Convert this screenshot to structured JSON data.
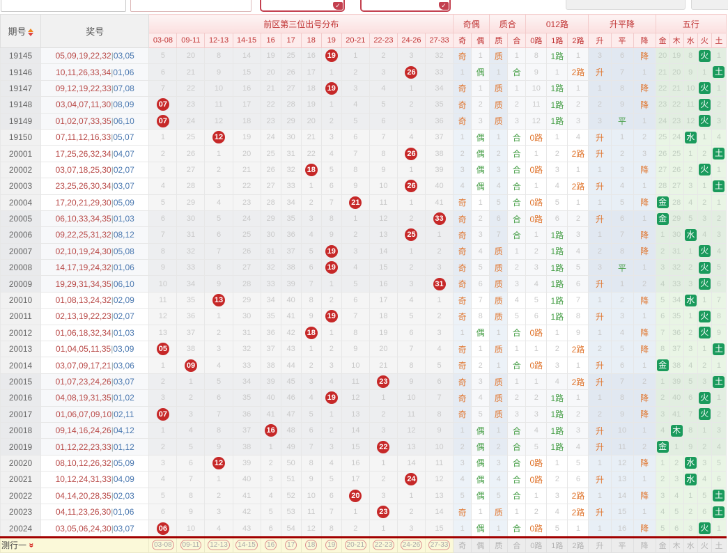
{
  "top_bar": {
    "inputs": [
      {
        "value": ""
      },
      {
        "value": ""
      }
    ],
    "red_buttons": [
      {
        "label": ""
      },
      {
        "label": ""
      }
    ],
    "gray_boxes": [
      {
        "label": ""
      },
      {
        "label": ""
      }
    ]
  },
  "header": {
    "issue_col": "期号",
    "prize_col": "奖号",
    "dist_group": "前区第三位出号分布",
    "dist_cols": [
      "03-08",
      "09-11",
      "12-13",
      "14-15",
      "16",
      "17",
      "18",
      "19",
      "20-21",
      "22-23",
      "24-26",
      "27-33"
    ],
    "groups": [
      {
        "label": "奇偶",
        "cols": [
          "奇",
          "偶"
        ]
      },
      {
        "label": "质合",
        "cols": [
          "质",
          "合"
        ]
      },
      {
        "label": "012路",
        "cols": [
          "0路",
          "1路",
          "2路"
        ]
      },
      {
        "label": "升平降",
        "cols": [
          "升",
          "平",
          "降"
        ]
      },
      {
        "label": "五行",
        "cols": [
          "金",
          "木",
          "水",
          "火",
          "土"
        ]
      }
    ]
  },
  "hit_styles": {
    "orange": [
      "奇",
      "质",
      "0路",
      "2路",
      "升",
      "降"
    ],
    "green": [
      "偶",
      "合",
      "1路",
      "平"
    ],
    "elements": [
      "金",
      "木",
      "水",
      "火",
      "土"
    ],
    "colors": {
      "ball": "#c62828",
      "badge": "#1a9a5c",
      "orange": "#e0762f",
      "green": "#4ba14b"
    }
  },
  "rows": [
    {
      "issue": "19145",
      "front": "05,09,19,22,32",
      "back": "03,05",
      "cells": [
        "5",
        "20",
        "8",
        "14",
        "19",
        "25",
        "16",
        "*19",
        "1",
        "2",
        "3",
        "32",
        "奇",
        "1",
        "质",
        "1",
        "8",
        "1路",
        "1",
        "3",
        "6",
        "降",
        "20",
        "19",
        "8",
        "火",
        "1"
      ]
    },
    {
      "issue": "19146",
      "front": "10,11,26,33,34",
      "back": "01,06",
      "cells": [
        "6",
        "21",
        "9",
        "15",
        "20",
        "26",
        "17",
        "1",
        "2",
        "3",
        "*26",
        "33",
        "1",
        "偶",
        "1",
        "合",
        "9",
        "1",
        "2路",
        "升",
        "7",
        "1",
        "21",
        "20",
        "9",
        "1",
        "土"
      ]
    },
    {
      "issue": "19147",
      "front": "09,12,19,22,33",
      "back": "07,08",
      "cells": [
        "7",
        "22",
        "10",
        "16",
        "21",
        "27",
        "18",
        "*19",
        "3",
        "4",
        "1",
        "34",
        "奇",
        "1",
        "质",
        "1",
        "10",
        "1路",
        "1",
        "1",
        "8",
        "降",
        "22",
        "21",
        "10",
        "火",
        "1"
      ]
    },
    {
      "issue": "19148",
      "front": "03,04,07,11,30",
      "back": "08,09",
      "cells": [
        "*07",
        "23",
        "11",
        "17",
        "22",
        "28",
        "19",
        "1",
        "4",
        "5",
        "2",
        "35",
        "奇",
        "2",
        "质",
        "2",
        "11",
        "1路",
        "2",
        "2",
        "9",
        "降",
        "23",
        "22",
        "11",
        "火",
        "2"
      ]
    },
    {
      "issue": "19149",
      "front": "01,02,07,33,35",
      "back": "06,10",
      "cells": [
        "*07",
        "24",
        "12",
        "18",
        "23",
        "29",
        "20",
        "2",
        "5",
        "6",
        "3",
        "36",
        "奇",
        "3",
        "质",
        "3",
        "12",
        "1路",
        "3",
        "3",
        "平",
        "1",
        "24",
        "23",
        "12",
        "火",
        "3"
      ]
    },
    {
      "issue": "19150",
      "front": "07,11,12,16,33",
      "back": "05,07",
      "cells": [
        "1",
        "25",
        "*12",
        "19",
        "24",
        "30",
        "21",
        "3",
        "6",
        "7",
        "4",
        "37",
        "1",
        "偶",
        "1",
        "合",
        "0路",
        "1",
        "4",
        "升",
        "1",
        "2",
        "25",
        "24",
        "水",
        "1",
        "4"
      ]
    },
    {
      "issue": "20001",
      "front": "17,25,26,32,34",
      "back": "04,07",
      "cells": [
        "2",
        "26",
        "1",
        "20",
        "25",
        "31",
        "22",
        "4",
        "7",
        "8",
        "*26",
        "38",
        "2",
        "偶",
        "2",
        "合",
        "1",
        "2",
        "2路",
        "升",
        "2",
        "3",
        "26",
        "25",
        "1",
        "2",
        "土"
      ]
    },
    {
      "issue": "20002",
      "front": "03,07,18,25,30",
      "back": "02,07",
      "cells": [
        "3",
        "27",
        "2",
        "21",
        "26",
        "32",
        "*18",
        "5",
        "8",
        "9",
        "1",
        "39",
        "3",
        "偶",
        "3",
        "合",
        "0路",
        "3",
        "1",
        "1",
        "3",
        "降",
        "27",
        "26",
        "2",
        "火",
        "1"
      ]
    },
    {
      "issue": "20003",
      "front": "23,25,26,30,34",
      "back": "03,07",
      "cells": [
        "4",
        "28",
        "3",
        "22",
        "27",
        "33",
        "1",
        "6",
        "9",
        "10",
        "*26",
        "40",
        "4",
        "偶",
        "4",
        "合",
        "1",
        "4",
        "2路",
        "升",
        "4",
        "1",
        "28",
        "27",
        "3",
        "1",
        "土"
      ]
    },
    {
      "issue": "20004",
      "front": "17,20,21,29,30",
      "back": "05,09",
      "cells": [
        "5",
        "29",
        "4",
        "23",
        "28",
        "34",
        "2",
        "7",
        "*21",
        "11",
        "1",
        "41",
        "奇",
        "1",
        "5",
        "合",
        "0路",
        "5",
        "1",
        "1",
        "5",
        "降",
        "金",
        "28",
        "4",
        "2",
        "1"
      ]
    },
    {
      "issue": "20005",
      "front": "06,10,33,34,35",
      "back": "01,03",
      "cells": [
        "6",
        "30",
        "5",
        "24",
        "29",
        "35",
        "3",
        "8",
        "1",
        "12",
        "2",
        "*33",
        "奇",
        "2",
        "6",
        "合",
        "0路",
        "6",
        "2",
        "升",
        "6",
        "1",
        "金",
        "29",
        "5",
        "3",
        "2"
      ]
    },
    {
      "issue": "20006",
      "front": "09,22,25,31,32",
      "back": "08,12",
      "cells": [
        "7",
        "31",
        "6",
        "25",
        "30",
        "36",
        "4",
        "9",
        "2",
        "13",
        "*25",
        "1",
        "奇",
        "3",
        "7",
        "合",
        "1",
        "1路",
        "3",
        "1",
        "7",
        "降",
        "1",
        "30",
        "水",
        "4",
        "3"
      ]
    },
    {
      "issue": "20007",
      "front": "02,10,19,24,30",
      "back": "05,08",
      "cells": [
        "8",
        "32",
        "7",
        "26",
        "31",
        "37",
        "5",
        "*19",
        "3",
        "14",
        "1",
        "2",
        "奇",
        "4",
        "质",
        "1",
        "2",
        "1路",
        "4",
        "2",
        "8",
        "降",
        "2",
        "31",
        "1",
        "火",
        "4"
      ]
    },
    {
      "issue": "20008",
      "front": "14,17,19,24,32",
      "back": "01,06",
      "cells": [
        "9",
        "33",
        "8",
        "27",
        "32",
        "38",
        "6",
        "*19",
        "4",
        "15",
        "2",
        "3",
        "奇",
        "5",
        "质",
        "2",
        "3",
        "1路",
        "5",
        "3",
        "平",
        "1",
        "3",
        "32",
        "2",
        "火",
        "5"
      ]
    },
    {
      "issue": "20009",
      "front": "19,29,31,34,35",
      "back": "06,10",
      "cells": [
        "10",
        "34",
        "9",
        "28",
        "33",
        "39",
        "7",
        "1",
        "5",
        "16",
        "3",
        "*31",
        "奇",
        "6",
        "质",
        "3",
        "4",
        "1路",
        "6",
        "升",
        "1",
        "2",
        "4",
        "33",
        "3",
        "火",
        "6"
      ]
    },
    {
      "issue": "20010",
      "front": "01,08,13,24,32",
      "back": "02,09",
      "cells": [
        "11",
        "35",
        "*13",
        "29",
        "34",
        "40",
        "8",
        "2",
        "6",
        "17",
        "4",
        "1",
        "奇",
        "7",
        "质",
        "4",
        "5",
        "1路",
        "7",
        "1",
        "2",
        "降",
        "5",
        "34",
        "水",
        "1",
        "7"
      ]
    },
    {
      "issue": "20011",
      "front": "02,13,19,22,23",
      "back": "02,07",
      "cells": [
        "12",
        "36",
        "1",
        "30",
        "35",
        "41",
        "9",
        "*19",
        "7",
        "18",
        "5",
        "2",
        "奇",
        "8",
        "质",
        "5",
        "6",
        "1路",
        "8",
        "升",
        "3",
        "1",
        "6",
        "35",
        "1",
        "火",
        "8"
      ]
    },
    {
      "issue": "20012",
      "front": "01,06,18,32,34",
      "back": "01,03",
      "cells": [
        "13",
        "37",
        "2",
        "31",
        "36",
        "42",
        "*18",
        "1",
        "8",
        "19",
        "6",
        "3",
        "1",
        "偶",
        "1",
        "合",
        "0路",
        "1",
        "9",
        "1",
        "4",
        "降",
        "7",
        "36",
        "2",
        "火",
        "9"
      ]
    },
    {
      "issue": "20013",
      "front": "01,04,05,11,35",
      "back": "03,09",
      "cells": [
        "*05",
        "38",
        "3",
        "32",
        "37",
        "43",
        "1",
        "2",
        "9",
        "20",
        "7",
        "4",
        "奇",
        "1",
        "质",
        "1",
        "1",
        "2",
        "2路",
        "2",
        "5",
        "降",
        "8",
        "37",
        "3",
        "1",
        "土"
      ]
    },
    {
      "issue": "20014",
      "front": "03,07,09,17,21",
      "back": "03,06",
      "cells": [
        "1",
        "*09",
        "4",
        "33",
        "38",
        "44",
        "2",
        "3",
        "10",
        "21",
        "8",
        "5",
        "奇",
        "2",
        "1",
        "合",
        "0路",
        "3",
        "1",
        "升",
        "6",
        "1",
        "金",
        "38",
        "4",
        "2",
        "1"
      ]
    },
    {
      "issue": "20015",
      "front": "01,07,23,24,26",
      "back": "03,07",
      "cells": [
        "2",
        "1",
        "5",
        "34",
        "39",
        "45",
        "3",
        "4",
        "11",
        "*23",
        "9",
        "6",
        "奇",
        "3",
        "质",
        "1",
        "1",
        "4",
        "2路",
        "升",
        "7",
        "2",
        "1",
        "39",
        "5",
        "3",
        "土"
      ]
    },
    {
      "issue": "20016",
      "front": "04,08,19,31,35",
      "back": "01,02",
      "cells": [
        "3",
        "2",
        "6",
        "35",
        "40",
        "46",
        "4",
        "*19",
        "12",
        "1",
        "10",
        "7",
        "奇",
        "4",
        "质",
        "2",
        "2",
        "1路",
        "1",
        "1",
        "8",
        "降",
        "2",
        "40",
        "6",
        "火",
        "1"
      ]
    },
    {
      "issue": "20017",
      "front": "01,06,07,09,10",
      "back": "02,11",
      "cells": [
        "*07",
        "3",
        "7",
        "36",
        "41",
        "47",
        "5",
        "1",
        "13",
        "2",
        "11",
        "8",
        "奇",
        "5",
        "质",
        "3",
        "3",
        "1路",
        "2",
        "2",
        "9",
        "降",
        "3",
        "41",
        "7",
        "火",
        "2"
      ]
    },
    {
      "issue": "20018",
      "front": "09,14,16,24,26",
      "back": "04,12",
      "cells": [
        "1",
        "4",
        "8",
        "37",
        "*16",
        "48",
        "6",
        "2",
        "14",
        "3",
        "12",
        "9",
        "1",
        "偶",
        "1",
        "合",
        "4",
        "1路",
        "3",
        "升",
        "10",
        "1",
        "4",
        "木",
        "8",
        "1",
        "3"
      ]
    },
    {
      "issue": "20019",
      "front": "01,12,22,23,33",
      "back": "01,12",
      "cells": [
        "2",
        "5",
        "9",
        "38",
        "1",
        "49",
        "7",
        "3",
        "15",
        "*22",
        "13",
        "10",
        "2",
        "偶",
        "2",
        "合",
        "5",
        "1路",
        "4",
        "升",
        "11",
        "2",
        "金",
        "1",
        "9",
        "2",
        "4"
      ]
    },
    {
      "issue": "20020",
      "front": "08,10,12,26,32",
      "back": "05,09",
      "cells": [
        "3",
        "6",
        "*12",
        "39",
        "2",
        "50",
        "8",
        "4",
        "16",
        "1",
        "14",
        "11",
        "3",
        "偶",
        "3",
        "合",
        "0路",
        "1",
        "5",
        "1",
        "12",
        "降",
        "1",
        "2",
        "水",
        "3",
        "5"
      ]
    },
    {
      "issue": "20021",
      "front": "10,12,24,31,33",
      "back": "04,09",
      "cells": [
        "4",
        "7",
        "1",
        "40",
        "3",
        "51",
        "9",
        "5",
        "17",
        "2",
        "*24",
        "12",
        "4",
        "偶",
        "4",
        "合",
        "0路",
        "2",
        "6",
        "升",
        "13",
        "1",
        "2",
        "3",
        "水",
        "4",
        "6"
      ]
    },
    {
      "issue": "20022",
      "front": "04,14,20,28,35",
      "back": "02,03",
      "cells": [
        "5",
        "8",
        "2",
        "41",
        "4",
        "52",
        "10",
        "6",
        "*20",
        "3",
        "1",
        "13",
        "5",
        "偶",
        "5",
        "合",
        "1",
        "3",
        "2路",
        "1",
        "14",
        "降",
        "3",
        "4",
        "1",
        "5",
        "土"
      ]
    },
    {
      "issue": "20023",
      "front": "04,11,23,26,30",
      "back": "01,06",
      "cells": [
        "6",
        "9",
        "3",
        "42",
        "5",
        "53",
        "11",
        "7",
        "1",
        "*23",
        "2",
        "14",
        "奇",
        "1",
        "质",
        "1",
        "2",
        "4",
        "2路",
        "升",
        "15",
        "1",
        "4",
        "5",
        "2",
        "6",
        "土"
      ]
    },
    {
      "issue": "20024",
      "front": "03,05,06,24,30",
      "back": "03,07",
      "cells": [
        "*06",
        "10",
        "4",
        "43",
        "6",
        "54",
        "12",
        "8",
        "2",
        "1",
        "3",
        "15",
        "1",
        "偶",
        "1",
        "合",
        "0路",
        "5",
        "1",
        "1",
        "16",
        "降",
        "5",
        "6",
        "3",
        "火",
        "1"
      ]
    }
  ],
  "footer": {
    "label": "测行一",
    "pills": [
      "03-08",
      "09-11",
      "12-13",
      "14-15",
      "16",
      "17",
      "18",
      "19",
      "20-21",
      "22-23",
      "24-26",
      "27-33"
    ],
    "plain": [
      "奇",
      "偶",
      "质",
      "合",
      "0路",
      "1路",
      "2路",
      "升",
      "平",
      "降",
      "金",
      "木",
      "水",
      "火",
      "土"
    ]
  }
}
